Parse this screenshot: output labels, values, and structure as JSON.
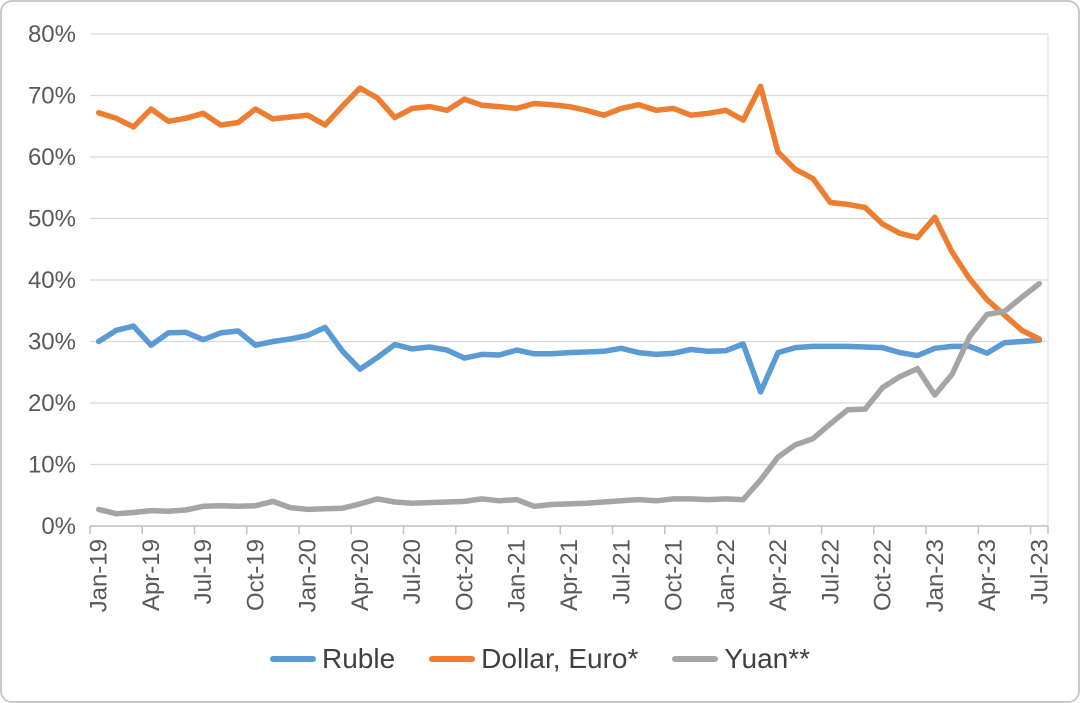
{
  "chart_data": {
    "type": "line",
    "x_months": [
      "Jan-19",
      "Feb-19",
      "Mar-19",
      "Apr-19",
      "May-19",
      "Jun-19",
      "Jul-19",
      "Aug-19",
      "Sep-19",
      "Oct-19",
      "Nov-19",
      "Dec-19",
      "Jan-20",
      "Feb-20",
      "Mar-20",
      "Apr-20",
      "May-20",
      "Jun-20",
      "Jul-20",
      "Aug-20",
      "Sep-20",
      "Oct-20",
      "Nov-20",
      "Dec-20",
      "Jan-21",
      "Feb-21",
      "Mar-21",
      "Apr-21",
      "May-21",
      "Jun-21",
      "Jul-21",
      "Aug-21",
      "Sep-21",
      "Oct-21",
      "Nov-21",
      "Dec-21",
      "Jan-22",
      "Feb-22",
      "Mar-22",
      "Apr-22",
      "May-22",
      "Jun-22",
      "Jul-22",
      "Aug-22",
      "Sep-22",
      "Oct-22",
      "Nov-22",
      "Dec-22",
      "Jan-23",
      "Feb-23",
      "Mar-23",
      "Apr-23",
      "May-23",
      "Jun-23",
      "Jul-23"
    ],
    "x_tick_labels": [
      "Jan-19",
      "Apr-19",
      "Jul-19",
      "Oct-19",
      "Jan-20",
      "Apr-20",
      "Jul-20",
      "Oct-20",
      "Jan-21",
      "Apr-21",
      "Jul-21",
      "Oct-21",
      "Jan-22",
      "Apr-22",
      "Jul-22",
      "Oct-22",
      "Jan-23",
      "Apr-23",
      "Jul-23"
    ],
    "y_tick_labels": [
      "80%",
      "70%",
      "60%",
      "50%",
      "40%",
      "30%",
      "20%",
      "10%",
      "0%"
    ],
    "ylim": [
      0,
      80
    ],
    "y_step": 10,
    "y_unit": "%",
    "grid": "horizontal",
    "legend_position": "bottom",
    "series": [
      {
        "name": "Ruble",
        "color": "#5B9BD5",
        "values": [
          30.0,
          31.8,
          32.5,
          29.4,
          31.4,
          31.5,
          30.3,
          31.4,
          31.7,
          29.4,
          30.0,
          30.4,
          31.0,
          32.3,
          28.4,
          25.5,
          27.4,
          29.5,
          28.8,
          29.1,
          28.6,
          27.3,
          27.9,
          27.8,
          28.6,
          28.0,
          28.0,
          28.2,
          28.3,
          28.4,
          28.9,
          28.2,
          27.9,
          28.1,
          28.7,
          28.4,
          28.5,
          29.6,
          21.8,
          28.2,
          29.0,
          29.2,
          29.2,
          29.2,
          29.1,
          29.0,
          28.2,
          27.7,
          28.9,
          29.2,
          29.2,
          28.1,
          29.8,
          30.0,
          30.2
        ]
      },
      {
        "name": "Dollar, Euro*",
        "color": "#ED7D31",
        "values": [
          67.2,
          66.3,
          64.9,
          67.8,
          65.8,
          66.3,
          67.1,
          65.2,
          65.6,
          67.8,
          66.2,
          66.5,
          66.8,
          65.2,
          68.3,
          71.2,
          69.6,
          66.4,
          67.9,
          68.2,
          67.6,
          69.4,
          68.4,
          68.2,
          67.9,
          68.7,
          68.5,
          68.2,
          67.6,
          66.8,
          67.9,
          68.5,
          67.6,
          67.9,
          66.8,
          67.1,
          67.6,
          66.0,
          71.5,
          60.8,
          58.0,
          56.5,
          52.6,
          52.3,
          51.8,
          49.1,
          47.6,
          46.9,
          50.2,
          44.5,
          40.2,
          36.8,
          34.3,
          31.8,
          30.4
        ]
      },
      {
        "name": "Yuan**",
        "color": "#A5A5A5",
        "values": [
          2.7,
          2.0,
          2.2,
          2.5,
          2.4,
          2.6,
          3.2,
          3.3,
          3.2,
          3.3,
          4.0,
          3.0,
          2.7,
          2.8,
          2.9,
          3.6,
          4.4,
          3.9,
          3.7,
          3.8,
          3.9,
          4.0,
          4.4,
          4.1,
          4.3,
          3.2,
          3.5,
          3.6,
          3.7,
          3.9,
          4.1,
          4.3,
          4.1,
          4.4,
          4.4,
          4.3,
          4.4,
          4.3,
          7.5,
          11.2,
          13.2,
          14.2,
          16.6,
          18.9,
          19.0,
          22.5,
          24.3,
          25.6,
          21.3,
          24.7,
          30.8,
          34.4,
          34.9,
          37.2,
          39.4
        ]
      }
    ]
  },
  "colors": {
    "background": "#FFFFFF",
    "gridline": "#D9D9D9",
    "axis_line": "#BFBFBF",
    "plot_right_border": "#E4E4E4",
    "axis_text": "#595959",
    "legend_text": "#404040",
    "frame_border": "#C9C9C9"
  }
}
